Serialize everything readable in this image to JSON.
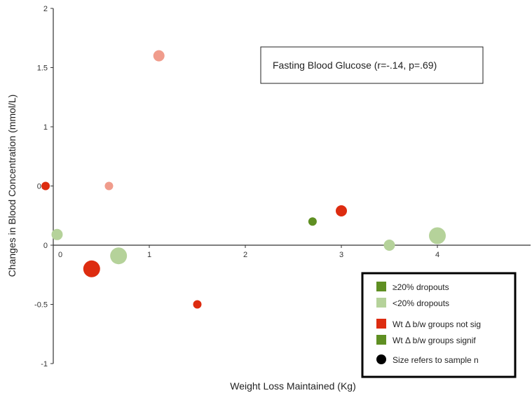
{
  "chart_data": {
    "type": "scatter",
    "xlabel": "Weight Loss Maintained (Kg)",
    "ylabel": "Changes in Blood Concentration (mmol/L)",
    "xlim": [
      0,
      5
    ],
    "ylim": [
      -1,
      2
    ],
    "x_ticks": [
      "0",
      "1",
      "2",
      "3",
      "4"
    ],
    "y_ticks": [
      "-1",
      "-0.5",
      "0",
      "0.5",
      "1",
      "1.5",
      "2"
    ],
    "grid": false,
    "annotation": "Fasting Blood Glucose (r=-.14, p=.69)",
    "colors": {
      "ge20_not_sig": "#f09c8c",
      "lt20_not_sig": "#dd2c10",
      "ge20_signif": "#5f8f22",
      "lt20_signif": "#b5d29a"
    },
    "points": [
      {
        "x": -0.08,
        "y": 0.5,
        "size": 1,
        "group": "lt20_not_sig"
      },
      {
        "x": 0.04,
        "y": 0.09,
        "size": 2,
        "group": "lt20_signif"
      },
      {
        "x": 0.4,
        "y": -0.2,
        "size": 4,
        "group": "lt20_not_sig"
      },
      {
        "x": 0.58,
        "y": 0.5,
        "size": 1,
        "group": "ge20_not_sig"
      },
      {
        "x": 0.68,
        "y": -0.09,
        "size": 4,
        "group": "lt20_signif"
      },
      {
        "x": 1.1,
        "y": 1.6,
        "size": 2,
        "group": "ge20_not_sig"
      },
      {
        "x": 1.5,
        "y": -0.5,
        "size": 1,
        "group": "lt20_not_sig"
      },
      {
        "x": 2.7,
        "y": 0.2,
        "size": 1,
        "group": "ge20_signif"
      },
      {
        "x": 3.0,
        "y": 0.29,
        "size": 2,
        "group": "lt20_not_sig"
      },
      {
        "x": 3.5,
        "y": 0.0,
        "size": 2,
        "group": "lt20_signif"
      },
      {
        "x": 4.0,
        "y": 0.08,
        "size": 4,
        "group": "lt20_signif"
      }
    ],
    "legend": {
      "placement": "bottom-right",
      "entries": [
        {
          "label": "≥20% dropouts",
          "marker": "square",
          "color": "#5f8f22"
        },
        {
          "label": "<20% dropouts",
          "marker": "square",
          "color": "#b5d29a"
        },
        {
          "label": "Wt Δ b/w groups not sig",
          "marker": "square",
          "color": "#dd2c10"
        },
        {
          "label": "Wt Δ b/w groups signif",
          "marker": "square",
          "color": "#5f8f22"
        },
        {
          "label": "Size refers to sample n",
          "marker": "circle",
          "color": "#000000"
        }
      ]
    }
  }
}
